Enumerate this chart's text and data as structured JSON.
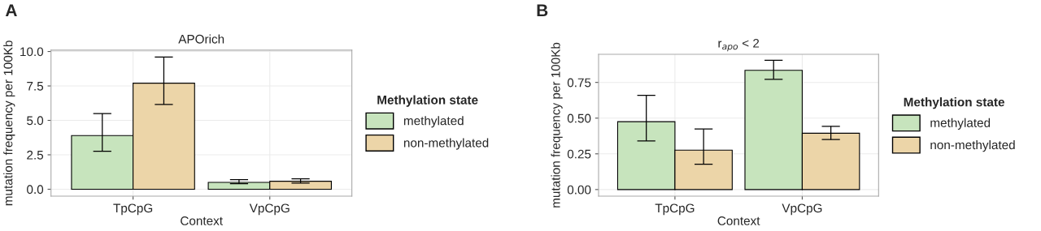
{
  "chart_data": [
    {
      "type": "bar",
      "title": "APOrich",
      "xlabel": "Context",
      "ylabel": "mutation frequency per 100Kb",
      "legend_title": "Methylation state",
      "annotations": [
        "A"
      ],
      "categories": [
        "TpCpG",
        "VpCpG"
      ],
      "series": [
        {
          "name": "methylated",
          "color": "#c7e4bd",
          "values": [
            3.9,
            0.5
          ],
          "errors": [
            [
              2.75,
              5.5
            ],
            [
              0.4,
              0.7
            ]
          ]
        },
        {
          "name": "non-methylated",
          "color": "#ecd5a8",
          "values": [
            7.7,
            0.58
          ],
          "errors": [
            [
              6.15,
              9.6
            ],
            [
              0.45,
              0.75
            ]
          ]
        }
      ],
      "ylim": [
        -0.5,
        10.1
      ],
      "yticks": [
        {
          "value": 0,
          "label": "0.0"
        },
        2.5,
        {
          "value": 5,
          "label": "5.0"
        },
        7.5,
        {
          "value": 10,
          "label": "10.0"
        }
      ],
      "grid": true,
      "legend": "right"
    },
    {
      "type": "bar",
      "title": "r$_{apo}$ < 2",
      "xlabel": "Context",
      "ylabel": "mutation frequency per 100Kb",
      "legend_title": "Methylation state",
      "annotations": [
        "B"
      ],
      "categories": [
        "TpCpG",
        "VpCpG"
      ],
      "series": [
        {
          "name": "methylated",
          "color": "#c7e4bd",
          "values": [
            0.475,
            0.835
          ],
          "errors": [
            [
              0.34,
              0.66
            ],
            [
              0.772,
              0.905
            ]
          ]
        },
        {
          "name": "non-methylated",
          "color": "#ecd5a8",
          "values": [
            0.276,
            0.394
          ],
          "errors": [
            [
              0.177,
              0.424
            ],
            [
              0.35,
              0.443
            ]
          ]
        }
      ],
      "ylim": [
        -0.046,
        0.947
      ],
      "yticks": [
        {
          "value": 0,
          "label": "0.00"
        },
        0.25,
        {
          "value": 0.5,
          "label": "0.50"
        },
        0.75
      ],
      "grid": true,
      "legend": "right"
    }
  ]
}
